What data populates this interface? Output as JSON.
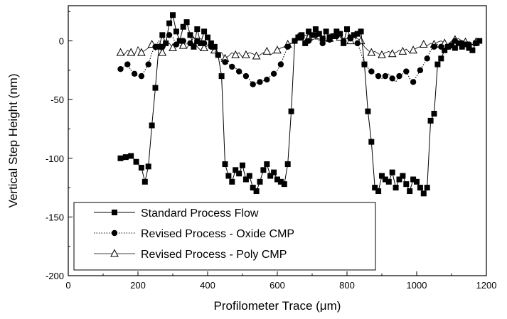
{
  "chart_data": {
    "type": "line",
    "xlabel": "Profilometer Trace (μm)",
    "ylabel": "Vertical Step Height (nm)",
    "xlim": [
      0,
      1200
    ],
    "ylim": [
      -200,
      30
    ],
    "xticks": [
      0,
      200,
      400,
      600,
      800,
      1000,
      1200
    ],
    "yticks": [
      -200,
      -150,
      -100,
      -50,
      0
    ],
    "grid": false,
    "legend_position": "bottom-left",
    "series": [
      {
        "name": "Standard Process Flow",
        "marker": "filled-square",
        "line": "solid",
        "x": [
          150,
          165,
          180,
          195,
          210,
          220,
          230,
          240,
          250,
          260,
          270,
          280,
          290,
          300,
          310,
          320,
          330,
          340,
          350,
          360,
          370,
          380,
          390,
          400,
          410,
          420,
          430,
          440,
          450,
          460,
          470,
          480,
          490,
          500,
          510,
          520,
          530,
          540,
          550,
          560,
          570,
          580,
          590,
          600,
          610,
          620,
          630,
          640,
          650,
          660,
          670,
          680,
          690,
          700,
          710,
          720,
          730,
          740,
          750,
          760,
          770,
          780,
          790,
          800,
          810,
          820,
          830,
          840,
          850,
          860,
          870,
          880,
          890,
          900,
          910,
          920,
          930,
          940,
          950,
          960,
          970,
          980,
          990,
          1000,
          1010,
          1020,
          1030,
          1040,
          1050,
          1060,
          1070,
          1080,
          1090,
          1100,
          1110,
          1120,
          1130,
          1140,
          1150,
          1160,
          1170,
          1180
        ],
        "values": [
          -100,
          -99,
          -98,
          -103,
          -108,
          -120,
          -107,
          -72,
          -40,
          -5,
          5,
          -2,
          15,
          22,
          8,
          0,
          12,
          16,
          5,
          -5,
          10,
          -2,
          8,
          3,
          -2,
          -5,
          -12,
          -30,
          -105,
          -115,
          -120,
          -110,
          -113,
          -106,
          -118,
          -115,
          -125,
          -128,
          -120,
          -110,
          -105,
          -115,
          -112,
          -118,
          -120,
          -122,
          -105,
          -60,
          0,
          3,
          5,
          -2,
          8,
          5,
          10,
          6,
          2,
          8,
          3,
          4,
          8,
          6,
          -2,
          10,
          3,
          5,
          6,
          8,
          -20,
          -60,
          -86,
          -125,
          -128,
          -115,
          -118,
          -120,
          -112,
          -125,
          -118,
          -115,
          -122,
          -128,
          -118,
          -120,
          -125,
          -130,
          -125,
          -68,
          -62,
          -20,
          -15,
          -8,
          -5,
          -4,
          -6,
          -2,
          -5,
          -3,
          -6,
          -8,
          -2,
          0
        ]
      },
      {
        "name": "Revised Process - Oxide CMP",
        "marker": "filled-circle",
        "line": "dotted",
        "x": [
          150,
          160,
          170,
          180,
          190,
          200,
          210,
          220,
          230,
          240,
          250,
          260,
          270,
          280,
          290,
          300,
          310,
          320,
          330,
          340,
          350,
          360,
          370,
          380,
          390,
          400,
          410,
          420,
          430,
          440,
          450,
          460,
          470,
          480,
          490,
          500,
          510,
          520,
          530,
          540,
          550,
          560,
          570,
          580,
          590,
          600,
          610,
          620,
          630,
          640,
          650,
          660,
          670,
          680,
          690,
          700,
          710,
          720,
          730,
          740,
          750,
          760,
          770,
          780,
          790,
          800,
          810,
          820,
          830,
          840,
          850,
          860,
          870,
          880,
          890,
          900,
          910,
          920,
          930,
          940,
          950,
          960,
          970,
          980,
          990,
          1000,
          1010,
          1020,
          1030,
          1040,
          1050,
          1060,
          1070,
          1080,
          1090,
          1100,
          1110,
          1120,
          1130,
          1140,
          1150,
          1160,
          1170,
          1180
        ],
        "values": [
          -24,
          -22,
          -20,
          -25,
          -28,
          -30,
          -30,
          -25,
          -20,
          -10,
          -5,
          0,
          -5,
          0,
          5,
          3,
          -3,
          -5,
          0,
          -3,
          -2,
          -3,
          0,
          2,
          -2,
          -3,
          -5,
          -8,
          -12,
          -16,
          -18,
          -20,
          -22,
          -23,
          -26,
          -28,
          -30,
          -33,
          -37,
          -36,
          -35,
          -34,
          -33,
          -30,
          -28,
          -25,
          -20,
          -12,
          -5,
          -2,
          0,
          2,
          3,
          -2,
          0,
          3,
          5,
          0,
          -2,
          3,
          1,
          2,
          4,
          3,
          0,
          3,
          2,
          5,
          -2,
          -10,
          -20,
          -23,
          -26,
          -28,
          -30,
          -32,
          -30,
          -28,
          -32,
          -35,
          -30,
          -28,
          -26,
          -32,
          -35,
          -30,
          -25,
          -20,
          -15,
          -8,
          -5,
          -3,
          -5,
          -3,
          -5,
          -2,
          0,
          -3,
          -2,
          -5,
          -3,
          -1,
          -2,
          -3
        ]
      },
      {
        "name": "Revised Process - Poly CMP",
        "marker": "open-triangle",
        "line": "solid-thin",
        "x": [
          150,
          160,
          170,
          180,
          190,
          200,
          210,
          220,
          230,
          240,
          250,
          260,
          270,
          280,
          290,
          300,
          310,
          320,
          330,
          340,
          350,
          360,
          370,
          380,
          390,
          400,
          410,
          420,
          430,
          440,
          450,
          460,
          470,
          480,
          490,
          500,
          510,
          520,
          530,
          540,
          550,
          560,
          570,
          580,
          590,
          600,
          610,
          620,
          630,
          640,
          650,
          660,
          670,
          680,
          690,
          700,
          710,
          720,
          730,
          740,
          750,
          760,
          770,
          780,
          790,
          800,
          810,
          820,
          830,
          840,
          850,
          860,
          870,
          880,
          890,
          900,
          910,
          920,
          930,
          940,
          950,
          960,
          970,
          980,
          990,
          1000,
          1010,
          1020,
          1030,
          1040,
          1050,
          1060,
          1070,
          1080,
          1090,
          1100,
          1110,
          1120,
          1130,
          1140,
          1150,
          1160,
          1170,
          1180
        ],
        "values": [
          -10,
          -12,
          -8,
          -10,
          -12,
          -5,
          -10,
          -8,
          -6,
          -3,
          -8,
          -5,
          -10,
          -4,
          -2,
          -6,
          -3,
          0,
          -4,
          -6,
          -2,
          0,
          -5,
          -8,
          -6,
          -4,
          -6,
          -8,
          -12,
          -10,
          -15,
          -13,
          -10,
          -12,
          -10,
          -14,
          -12,
          -10,
          -11,
          -13,
          -12,
          -10,
          -9,
          -12,
          -10,
          -8,
          -6,
          -5,
          -3,
          -2,
          0,
          3,
          2,
          5,
          3,
          1,
          2,
          4,
          3,
          0,
          2,
          5,
          4,
          3,
          1,
          2,
          0,
          3,
          2,
          0,
          -5,
          -8,
          -10,
          -9,
          -11,
          -12,
          -10,
          -9,
          -11,
          -10,
          -8,
          -9,
          -7,
          -10,
          -8,
          -6,
          -5,
          -3,
          -4,
          -2,
          -3,
          -1,
          0,
          -2,
          -3,
          0,
          1,
          2,
          0,
          -1,
          -2,
          -3,
          -1,
          0
        ]
      }
    ]
  }
}
